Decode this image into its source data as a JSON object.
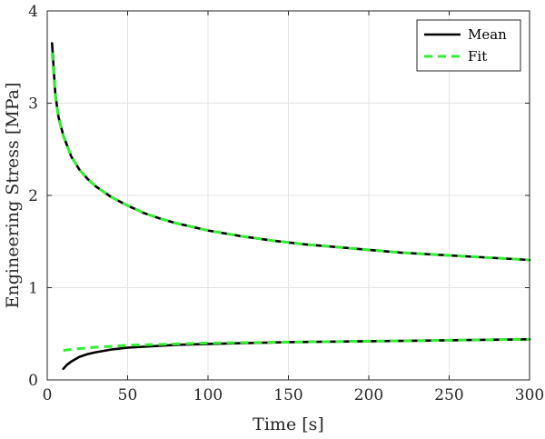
{
  "chart_data": {
    "type": "line",
    "xlabel": "Time [s]",
    "ylabel": "Engineering Stress [MPa]",
    "xlim": [
      0,
      300
    ],
    "ylim": [
      0,
      4
    ],
    "xticks": [
      0,
      50,
      100,
      150,
      200,
      250,
      300
    ],
    "xtick_labels": [
      "0",
      "50",
      "100",
      "150",
      "200",
      "250",
      "300"
    ],
    "yticks": [
      0,
      1,
      2,
      3,
      4
    ],
    "ytick_labels": [
      "0",
      "1",
      "2",
      "3",
      "4"
    ],
    "grid": true,
    "legend_position": "top-right",
    "series": [
      {
        "name": "Mean",
        "color": "#000000",
        "style": "solid",
        "segments": [
          {
            "x": [
              3,
              5,
              7,
              10,
              15,
              20,
              25,
              30,
              40,
              50,
              60,
              70,
              80,
              90,
              100,
              120,
              140,
              160,
              180,
              200,
              220,
              240,
              260,
              280,
              300
            ],
            "y": [
              3.65,
              3.1,
              2.85,
              2.65,
              2.42,
              2.28,
              2.18,
              2.1,
              1.98,
              1.89,
              1.81,
              1.75,
              1.7,
              1.66,
              1.62,
              1.56,
              1.51,
              1.47,
              1.44,
              1.41,
              1.38,
              1.36,
              1.34,
              1.32,
              1.3
            ]
          },
          {
            "x": [
              10,
              12,
              15,
              20,
              25,
              30,
              40,
              50,
              60,
              80,
              100,
              150,
              200,
              250,
              300
            ],
            "y": [
              0.12,
              0.16,
              0.2,
              0.25,
              0.28,
              0.3,
              0.33,
              0.35,
              0.36,
              0.38,
              0.39,
              0.41,
              0.42,
              0.43,
              0.44
            ]
          }
        ]
      },
      {
        "name": "Fit",
        "color": "#33ee33",
        "style": "dashed",
        "segments": [
          {
            "x": [
              3,
              5,
              7,
              10,
              15,
              20,
              25,
              30,
              40,
              50,
              60,
              70,
              80,
              90,
              100,
              120,
              140,
              160,
              180,
              200,
              220,
              240,
              260,
              280,
              300
            ],
            "y": [
              3.55,
              3.08,
              2.84,
              2.64,
              2.42,
              2.28,
              2.18,
              2.1,
              1.98,
              1.89,
              1.81,
              1.75,
              1.7,
              1.66,
              1.62,
              1.56,
              1.51,
              1.47,
              1.44,
              1.41,
              1.38,
              1.36,
              1.34,
              1.32,
              1.3
            ]
          },
          {
            "x": [
              10,
              20,
              30,
              40,
              50,
              60,
              80,
              100,
              150,
              200,
              250,
              300
            ],
            "y": [
              0.32,
              0.34,
              0.355,
              0.365,
              0.375,
              0.38,
              0.39,
              0.4,
              0.41,
              0.42,
              0.43,
              0.44
            ]
          }
        ]
      }
    ]
  }
}
